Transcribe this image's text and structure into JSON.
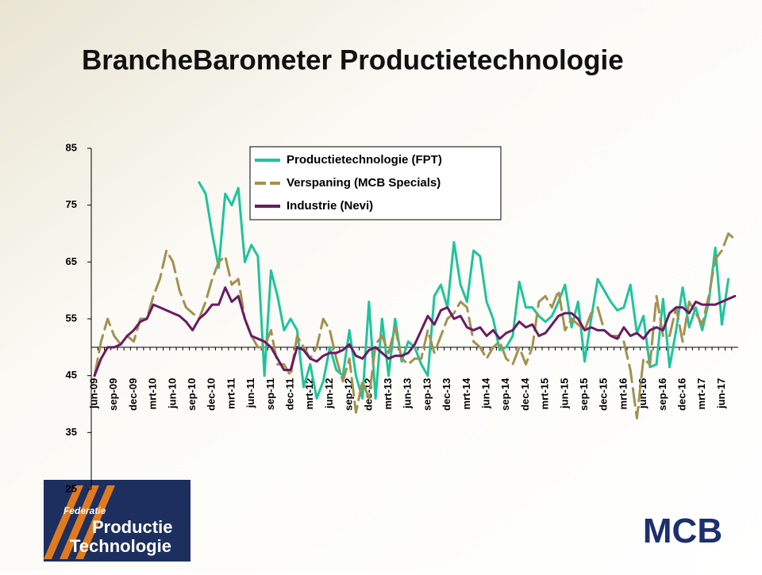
{
  "title": "BrancheBarometer Productietechnologie",
  "logos": {
    "left": [
      "Federatie",
      "Productie",
      "Technologie"
    ],
    "right": "MCB"
  },
  "chart_data": {
    "type": "line",
    "categories": [
      "jun-09",
      null,
      null,
      "sep-09",
      null,
      null,
      "dec-09",
      null,
      null,
      "mrt-10",
      null,
      null,
      "jun-10",
      null,
      null,
      "sep-10",
      null,
      null,
      "dec-10",
      null,
      null,
      "mrt-11",
      null,
      null,
      "jun-11",
      null,
      null,
      "sep-11",
      null,
      null,
      "dec-11",
      null,
      null,
      "mrt-12",
      null,
      null,
      "jun-12",
      null,
      null,
      "sep-12",
      null,
      null,
      "dec-12",
      null,
      null,
      "mrt-13",
      null,
      null,
      "jun-13",
      null,
      null,
      "sep-13",
      null,
      null,
      "dec-13",
      null,
      null,
      "mrt-14",
      null,
      null,
      "jun-14",
      null,
      null,
      "sep-14",
      null,
      null,
      "dec-14",
      null,
      null,
      "mrt-15",
      null,
      null,
      "jun-15",
      null,
      null,
      "sep-15",
      null,
      null,
      "dec-15",
      null,
      null,
      "mrt-16",
      null,
      null,
      "jun-16",
      null,
      null,
      "sep-16",
      null,
      null,
      "dec-16",
      null,
      null,
      "mrt-17",
      null,
      null,
      "jun-17",
      null,
      null
    ],
    "series": [
      {
        "name": "Productietechnologie (FPT)",
        "color": "#1fc49a",
        "dash": false,
        "values": [
          null,
          null,
          null,
          null,
          null,
          null,
          null,
          null,
          null,
          null,
          null,
          null,
          null,
          null,
          null,
          null,
          79,
          77,
          70,
          64,
          77,
          75,
          78,
          65,
          68,
          66,
          45,
          63.5,
          59,
          53,
          55,
          53,
          43,
          47,
          41,
          44,
          50,
          46,
          45,
          53,
          45,
          41,
          58,
          41,
          55,
          45,
          55,
          47.5,
          51,
          50,
          47,
          45,
          59,
          61,
          57,
          68.5,
          61,
          58,
          67,
          66,
          58,
          55,
          49.5,
          50,
          52,
          61.5,
          57,
          57,
          55.5,
          54.5,
          55.5,
          58,
          61,
          53.5,
          58,
          47.5,
          55,
          62,
          60,
          58,
          56.5,
          57,
          61,
          52.5,
          55.5,
          46.5,
          47,
          58.5,
          46.5,
          53,
          60.5,
          53.5,
          57,
          53,
          58,
          67.5,
          54,
          62,
          null
        ]
      },
      {
        "name": "Verspaning (MCB Specials)",
        "color": "#a39150",
        "dash": true,
        "values": [
          45,
          51,
          55,
          52,
          50.5,
          52,
          51,
          55,
          55,
          59,
          62,
          67,
          65,
          60,
          57,
          56,
          55,
          58,
          62,
          65,
          66,
          61,
          62,
          55,
          52,
          50,
          50,
          53,
          47,
          47,
          45,
          52,
          50,
          48,
          50,
          55,
          53,
          48,
          44,
          48,
          38.5,
          44,
          41,
          50.5,
          52,
          49,
          53.5,
          48,
          47,
          48,
          48,
          53,
          49,
          52,
          55,
          56,
          58,
          57,
          51,
          50,
          48,
          50,
          51,
          48,
          47,
          50,
          47,
          50,
          58,
          59,
          57,
          60,
          53,
          55,
          54,
          53,
          56,
          57,
          53,
          52,
          52,
          51,
          46,
          37.5,
          48,
          47,
          59,
          52,
          52,
          57,
          51,
          58,
          56,
          54,
          59,
          65.5,
          67,
          70,
          69
        ]
      },
      {
        "name": "Industrie (Nevi)",
        "color": "#6a1a63",
        "dash": false,
        "values": [
          45,
          48,
          50,
          50,
          50.5,
          52,
          53,
          54.5,
          55,
          57.5,
          57,
          56.5,
          56,
          55.5,
          54.5,
          53,
          55,
          56,
          57.5,
          57.5,
          60.5,
          58,
          59,
          55,
          52,
          51.5,
          51,
          50,
          48,
          46,
          46,
          50,
          49.5,
          48,
          47.5,
          48.5,
          49,
          49,
          49.5,
          50.5,
          48.5,
          48,
          49.5,
          50,
          49,
          48,
          48.5,
          48.5,
          49,
          50.5,
          53,
          55.5,
          54,
          56.5,
          57,
          55,
          55.5,
          53.5,
          53,
          53.5,
          52,
          53,
          51.5,
          52.5,
          53,
          54.5,
          53.5,
          54,
          52,
          52.5,
          54,
          55.5,
          56,
          56,
          55,
          53,
          53.5,
          53,
          53,
          52,
          51.5,
          53.5,
          52,
          52.5,
          51.5,
          53,
          53.5,
          53,
          56,
          57,
          57,
          56,
          58,
          57.5,
          57.5,
          57.5,
          58,
          58.5,
          59
        ]
      }
    ],
    "ylim": [
      25,
      85
    ],
    "yticks": [
      25,
      35,
      45,
      55,
      65,
      75,
      85
    ],
    "x_axis_crosses_at": 50,
    "legend": "top",
    "grid": false
  }
}
